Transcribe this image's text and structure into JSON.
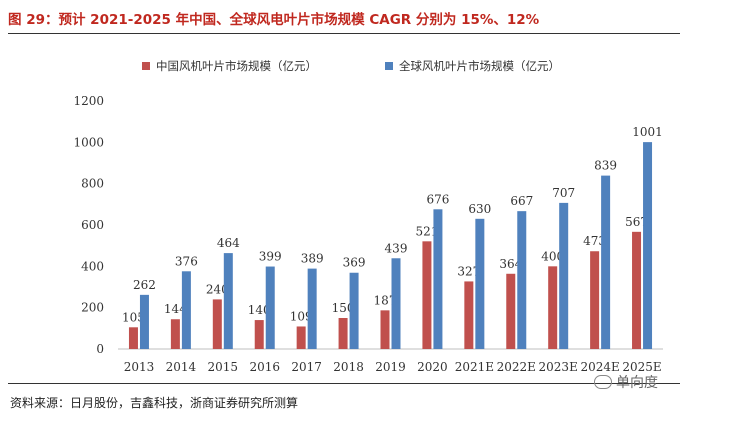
{
  "title": "图 29：预计 2021-2025 年中国、全球风电叶片市场规模 CAGR 分别为 15%、12%",
  "source": "资料来源：日月股份，吉鑫科技，浙商证券研究所测算",
  "watermark": "单向度",
  "colors": {
    "title": "#c0281f",
    "china": "#c0504d",
    "global": "#4f81bd"
  },
  "chart_data": {
    "type": "bar",
    "categories": [
      "2013",
      "2014",
      "2015",
      "2016",
      "2017",
      "2018",
      "2019",
      "2020",
      "2021E",
      "2022E",
      "2023E",
      "2024E",
      "2025E"
    ],
    "series": [
      {
        "name": "中国风机叶片市场规模（亿元）",
        "values": [
          105,
          144,
          240,
          140,
          109,
          150,
          187,
          521,
          327,
          364,
          400,
          473,
          567
        ]
      },
      {
        "name": "全球风机叶片市场规模（亿元）",
        "values": [
          262,
          376,
          464,
          399,
          389,
          369,
          439,
          676,
          630,
          667,
          707,
          839,
          1001
        ]
      }
    ],
    "yticks": [
      0,
      200,
      400,
      600,
      800,
      1000,
      1200
    ],
    "ylim": [
      0,
      1200
    ],
    "grid": false,
    "legend_position": "top-center"
  }
}
